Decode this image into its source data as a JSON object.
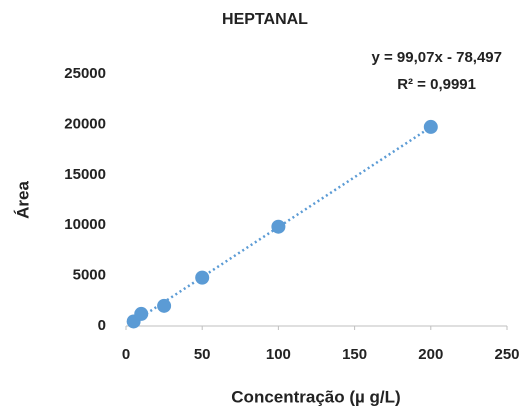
{
  "chart_data": {
    "type": "scatter",
    "title": "HEPTANAL",
    "x_label": "Concentração (µ g/L)",
    "y_label": "Área",
    "annotations": [
      "y = 99,07x - 78,497",
      "R² = 0,9991"
    ],
    "series": [
      {
        "name": "HEPTANAL",
        "color": "#5b9bd5",
        "x": [
          5,
          10,
          25,
          50,
          100,
          200
        ],
        "values": [
          450,
          1200,
          2000,
          4800,
          9850,
          19750
        ]
      }
    ],
    "trendline": "linear",
    "xlim": [
      0,
      250
    ],
    "xticks": [
      0,
      50,
      100,
      150,
      200,
      250
    ],
    "ylim": [
      0,
      25000
    ],
    "yticks": [
      0,
      5000,
      10000,
      15000,
      20000,
      25000
    ],
    "grid": false
  }
}
